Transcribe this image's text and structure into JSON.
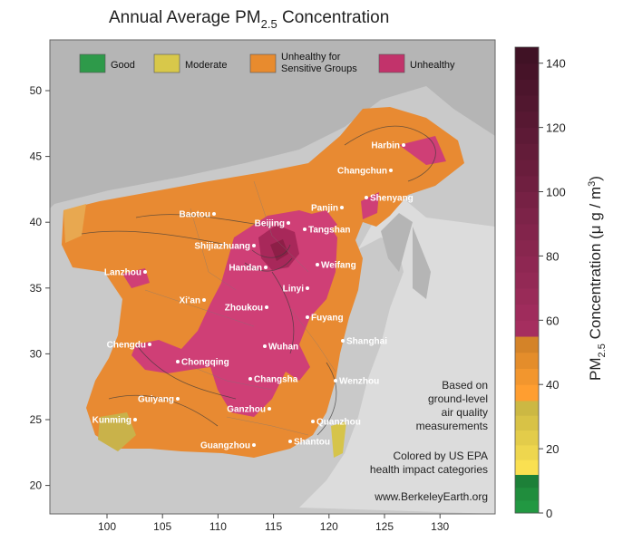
{
  "title": {
    "main": "Annual Average PM",
    "sub": "2.5",
    "rest": " Concentration"
  },
  "legend": [
    {
      "label_lines": [
        "Good"
      ],
      "color": "#2e9a4a"
    },
    {
      "label_lines": [
        "Moderate"
      ],
      "color": "#d8c84a"
    },
    {
      "label_lines": [
        "Unhealthy for",
        "Sensitive Groups"
      ],
      "color": "#e88b2e"
    },
    {
      "label_lines": [
        "Unhealthy"
      ],
      "color": "#c2336b"
    }
  ],
  "axes": {
    "x_ticks": [
      "100",
      "105",
      "110",
      "115",
      "120",
      "125",
      "130"
    ],
    "y_ticks": [
      "50",
      "45",
      "40",
      "35",
      "30",
      "25",
      "20"
    ]
  },
  "colorbar": {
    "label_main": "PM",
    "label_sub": "2.5",
    "label_rest": " Concentration (",
    "label_unit": "μ g / m",
    "label_sup": "3",
    "label_close": ")",
    "ticks": [
      "140",
      "120",
      "100",
      "80",
      "60",
      "40",
      "20",
      "0"
    ],
    "range": [
      0,
      145
    ],
    "bands": [
      {
        "from": 0,
        "to": 12,
        "color": "#1f8a3c"
      },
      {
        "from": 12,
        "to": 35,
        "color": "#e3cc4a"
      },
      {
        "from": 35,
        "to": 55,
        "color": "#e9902c"
      },
      {
        "from": 55,
        "to": 145,
        "color": "#c23670"
      }
    ]
  },
  "cities": [
    {
      "name": "Harbin"
    },
    {
      "name": "Changchun"
    },
    {
      "name": "Shenyang"
    },
    {
      "name": "Baotou"
    },
    {
      "name": "Beijing"
    },
    {
      "name": "Panjin"
    },
    {
      "name": "Tangshan"
    },
    {
      "name": "Shijiazhuang"
    },
    {
      "name": "Handan"
    },
    {
      "name": "Weifang"
    },
    {
      "name": "Lanzhou"
    },
    {
      "name": "Linyi"
    },
    {
      "name": "Xi'an"
    },
    {
      "name": "Zhoukou"
    },
    {
      "name": "Fuyang"
    },
    {
      "name": "Chengdu"
    },
    {
      "name": "Chongqing"
    },
    {
      "name": "Wuhan"
    },
    {
      "name": "Shanghai"
    },
    {
      "name": "Changsha"
    },
    {
      "name": "Wenzhou"
    },
    {
      "name": "Guiyang"
    },
    {
      "name": "Ganzhou"
    },
    {
      "name": "Kunming"
    },
    {
      "name": "Quanzhou"
    },
    {
      "name": "Shantou"
    },
    {
      "name": "Guangzhou"
    }
  ],
  "notes": {
    "based_on": [
      "Based on",
      "ground-level",
      "air quality",
      "measurements"
    ],
    "colored_by": [
      "Colored by US EPA",
      "health impact categories"
    ],
    "source": "www.BerkeleyEarth.org"
  }
}
